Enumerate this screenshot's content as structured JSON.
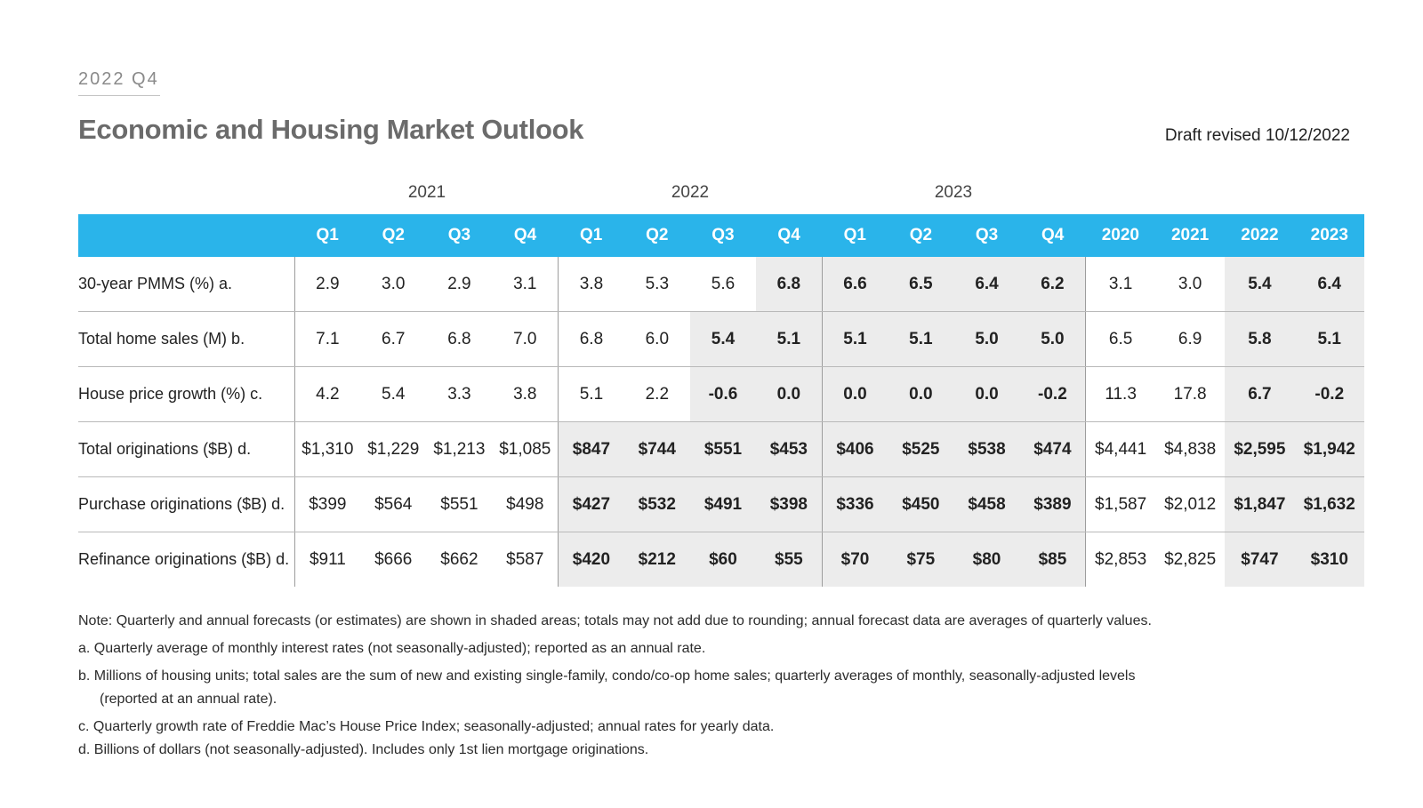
{
  "header": {
    "quarter_label": "2022 Q4",
    "title": "Economic and Housing Market Outlook",
    "draft_note": "Draft revised 10/12/2022"
  },
  "year_groups": [
    "2021",
    "2022",
    "2023"
  ],
  "colors": {
    "header_bg": "#2ab4ea",
    "shade_bg": "#ececec",
    "title": "#6b6b6b"
  },
  "columns": [
    "Q1",
    "Q2",
    "Q3",
    "Q4",
    "Q1",
    "Q2",
    "Q3",
    "Q4",
    "Q1",
    "Q2",
    "Q3",
    "Q4",
    "2020",
    "2021",
    "2022",
    "2023"
  ],
  "rows": [
    {
      "label": "30-year PMMS (%) a.",
      "cells": [
        "2.9",
        "3.0",
        "2.9",
        "3.1",
        "3.8",
        "5.3",
        "5.6",
        "6.8",
        "6.6",
        "6.5",
        "6.4",
        "6.2",
        "3.1",
        "3.0",
        "5.4",
        "6.4"
      ],
      "forecast_from": 7
    },
    {
      "label": "Total home sales (M) b.",
      "cells": [
        "7.1",
        "6.7",
        "6.8",
        "7.0",
        "6.8",
        "6.0",
        "5.4",
        "5.1",
        "5.1",
        "5.1",
        "5.0",
        "5.0",
        "6.5",
        "6.9",
        "5.8",
        "5.1"
      ],
      "forecast_from": 6
    },
    {
      "label": "House price growth (%) c.",
      "cells": [
        "4.2",
        "5.4",
        "3.3",
        "3.8",
        "5.1",
        "2.2",
        "-0.6",
        "0.0",
        "0.0",
        "0.0",
        "0.0",
        "-0.2",
        "11.3",
        "17.8",
        "6.7",
        "-0.2"
      ],
      "forecast_from": 6
    },
    {
      "label": "Total originations ($B) d.",
      "cells": [
        "$1,310",
        "$1,229",
        "$1,213",
        "$1,085",
        "$847",
        "$744",
        "$551",
        "$453",
        "$406",
        "$525",
        "$538",
        "$474",
        "$4,441",
        "$4,838",
        "$2,595",
        "$1,942"
      ],
      "forecast_from": 4
    },
    {
      "label": "Purchase originations ($B) d.",
      "cells": [
        "$399",
        "$564",
        "$551",
        "$498",
        "$427",
        "$532",
        "$491",
        "$398",
        "$336",
        "$450",
        "$458",
        "$389",
        "$1,587",
        "$2,012",
        "$1,847",
        "$1,632"
      ],
      "forecast_from": 4
    },
    {
      "label": "Refinance originations ($B) d.",
      "cells": [
        "$911",
        "$666",
        "$662",
        "$587",
        "$420",
        "$212",
        "$60",
        "$55",
        "$70",
        "$75",
        "$80",
        "$85",
        "$2,853",
        "$2,825",
        "$747",
        "$310"
      ],
      "forecast_from": 4
    }
  ],
  "notes": {
    "main": "Note: Quarterly and annual forecasts (or estimates) are shown in shaded areas; totals may not add due to rounding; annual forecast data are averages of quarterly values.",
    "a": "a. Quarterly average of monthly interest rates (not seasonally-adjusted); reported as an annual rate.",
    "b": "b. Millions of housing units; total sales are the sum of new and existing single-family, condo/co-op home sales; quarterly averages of monthly, seasonally-adjusted levels",
    "b_cont": "(reported at an annual rate).",
    "c": "c. Quarterly growth rate of Freddie Mac’s House Price Index; seasonally-adjusted; annual rates for yearly data.",
    "d": "d. Billions of dollars (not seasonally-adjusted). Includes only 1st lien mortgage originations."
  }
}
